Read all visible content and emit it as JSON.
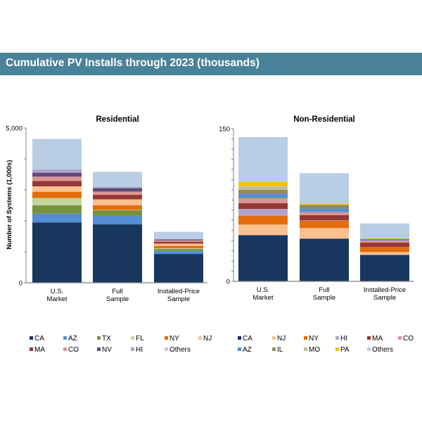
{
  "header": {
    "title": "Cumulative PV Installs through 2023 (thousands)"
  },
  "colors": {
    "CA": "#17375e",
    "AZ": "#558ed5",
    "TX": "#77933c",
    "FL": "#c3d69b",
    "NY": "#e46c0a",
    "NJ": "#fac090",
    "MA": "#953735",
    "CO": "#d99694",
    "NV": "#604a7b",
    "HI": "#b3a2c7",
    "IL": "#948a54",
    "MO": "#c4bd97",
    "PA": "#ffc000",
    "Others": "#b9cde5"
  },
  "chart_data": [
    {
      "type": "bar",
      "stacked": true,
      "title": "Residential",
      "ylabel": "Number of Systems (1,000s)",
      "xlabel": "",
      "ylim": [
        0,
        5000
      ],
      "yticks": [
        0,
        1000,
        2000,
        3000,
        4000,
        5000
      ],
      "ytick_labels": [
        "0",
        "",
        "",
        "",
        "",
        "5,000"
      ],
      "categories": [
        "U.S. Market",
        "Full Sample",
        "Installed-Price Sample"
      ],
      "category_lines": [
        [
          "U.S.",
          "Market"
        ],
        [
          "Full",
          "Sample"
        ],
        [
          "Installed-Price",
          "Sample"
        ]
      ],
      "legend": [
        "CA",
        "AZ",
        "TX",
        "FL",
        "NY",
        "NJ",
        "MA",
        "CO",
        "NV",
        "HI",
        "Others"
      ],
      "legend_position": "bottom",
      "series": [
        {
          "name": "CA",
          "values": [
            1950,
            1885,
            930
          ]
        },
        {
          "name": "AZ",
          "values": [
            285,
            275,
            100
          ]
        },
        {
          "name": "TX",
          "values": [
            265,
            180,
            60
          ]
        },
        {
          "name": "FL",
          "values": [
            235,
            15,
            25
          ]
        },
        {
          "name": "NY",
          "values": [
            205,
            150,
            75
          ]
        },
        {
          "name": "NJ",
          "values": [
            175,
            190,
            75
          ]
        },
        {
          "name": "MA",
          "values": [
            170,
            145,
            60
          ]
        },
        {
          "name": "CO",
          "values": [
            145,
            105,
            45
          ]
        },
        {
          "name": "NV",
          "values": [
            125,
            115,
            30
          ]
        },
        {
          "name": "HI",
          "values": [
            105,
            30,
            15
          ]
        },
        {
          "name": "Others",
          "values": [
            985,
            495,
            230
          ]
        }
      ]
    },
    {
      "type": "bar",
      "stacked": true,
      "title": "Non-Residential",
      "ylabel": "",
      "xlabel": "",
      "ylim": [
        0,
        150
      ],
      "yticks": [
        0,
        10,
        20,
        30,
        40,
        50,
        60,
        70,
        80,
        90,
        100,
        110,
        120,
        130,
        140,
        150
      ],
      "ytick_labels": [
        "0",
        "",
        "",
        "",
        "",
        "",
        "",
        "",
        "",
        "",
        "",
        "",
        "",
        "",
        "",
        "150"
      ],
      "categories": [
        "U.S. Market",
        "Full Sample",
        "Installed-Price Sample"
      ],
      "category_lines": [
        [
          "U.S.",
          "Market"
        ],
        [
          "Full",
          "Sample"
        ],
        [
          "Installed-Price",
          "Sample"
        ]
      ],
      "legend": [
        "CA",
        "NJ",
        "NY",
        "HI",
        "MA",
        "CO",
        "AZ",
        "IL",
        "MO",
        "PA",
        "Others"
      ],
      "legend_position": "bottom",
      "series": [
        {
          "name": "CA",
          "values": [
            45.4,
            42.0,
            26.0
          ]
        },
        {
          "name": "NJ",
          "values": [
            10.4,
            10.3,
            2.8
          ]
        },
        {
          "name": "NY",
          "values": [
            8.5,
            7.2,
            5.1
          ]
        },
        {
          "name": "HI",
          "values": [
            6.9,
            0.4,
            0
          ]
        },
        {
          "name": "MA",
          "values": [
            5.7,
            5.1,
            4.1
          ]
        },
        {
          "name": "CO",
          "values": [
            4.7,
            3.0,
            2.1
          ]
        },
        {
          "name": "AZ",
          "values": [
            4.1,
            3.5,
            1.6
          ]
        },
        {
          "name": "IL",
          "values": [
            4.2,
            3.5,
            0
          ]
        },
        {
          "name": "MO",
          "values": [
            3.9,
            0.5,
            0
          ]
        },
        {
          "name": "PA",
          "values": [
            3.7,
            0.9,
            0.7
          ]
        },
        {
          "name": "Others",
          "values": [
            44.2,
            29.9,
            14.5
          ]
        }
      ]
    }
  ]
}
